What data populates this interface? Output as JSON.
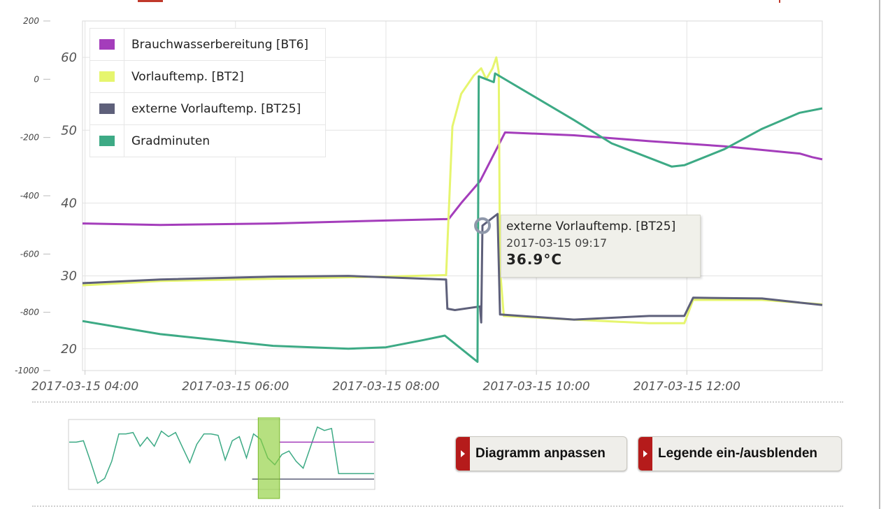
{
  "chart_data": {
    "type": "line",
    "x_range": [
      "2017-03-15 03:58",
      "2017-03-15 13:48"
    ],
    "x_ticks": [
      "2017-03-15 04:00",
      "2017-03-15 06:00",
      "2017-03-15 08:00",
      "2017-03-15 10:00",
      "2017-03-15 12:00"
    ],
    "x_tick_labels": [
      "2017-03-15 04:00",
      "2017-03-15 06:00",
      "2017-03-15 08:00",
      "2017-03-15 10:00",
      "2017-03-15 12:00"
    ],
    "y_left": {
      "ylim": [
        -1000,
        200
      ],
      "ticks": [
        200,
        0,
        -200,
        -400,
        -600,
        -800,
        -1000
      ],
      "tick_labels": [
        "200",
        "0",
        "-200",
        "-400",
        "-600",
        "-800",
        "-1000"
      ]
    },
    "y_right": {
      "ylim": [
        17,
        65
      ],
      "ticks": [
        60,
        50,
        40,
        30,
        20
      ],
      "tick_labels": [
        "60",
        "50",
        "40",
        "30",
        "20"
      ]
    },
    "grid": true,
    "legend_position": "top-left",
    "series": [
      {
        "name": "Brauchwasserbereitung [BT6]",
        "color": "#a43dbb",
        "axis": "right",
        "points": [
          [
            "2017-03-15 03:58",
            37.2
          ],
          [
            "2017-03-15 05:00",
            37.0
          ],
          [
            "2017-03-15 06:30",
            37.2
          ],
          [
            "2017-03-15 08:00",
            37.6
          ],
          [
            "2017-03-15 08:50",
            37.8
          ],
          [
            "2017-03-15 09:00",
            40.0
          ],
          [
            "2017-03-15 09:15",
            43.0
          ],
          [
            "2017-03-15 09:35",
            49.7
          ],
          [
            "2017-03-15 10:30",
            49.3
          ],
          [
            "2017-03-15 11:30",
            48.5
          ],
          [
            "2017-03-15 12:30",
            47.8
          ],
          [
            "2017-03-15 13:30",
            46.8
          ],
          [
            "2017-03-15 13:40",
            46.3
          ],
          [
            "2017-03-15 13:48",
            46.0
          ]
        ]
      },
      {
        "name": "Vorlauftemp. [BT2]",
        "color": "#e6f56e",
        "axis": "right",
        "points": [
          [
            "2017-03-15 03:58",
            28.7
          ],
          [
            "2017-03-15 05:00",
            29.3
          ],
          [
            "2017-03-15 06:30",
            29.6
          ],
          [
            "2017-03-15 08:00",
            29.9
          ],
          [
            "2017-03-15 08:48",
            30.1
          ],
          [
            "2017-03-15 08:53",
            50.5
          ],
          [
            "2017-03-15 09:00",
            55.0
          ],
          [
            "2017-03-15 09:10",
            57.5
          ],
          [
            "2017-03-15 09:16",
            58.5
          ],
          [
            "2017-03-15 09:20",
            57.0
          ],
          [
            "2017-03-15 09:25",
            58.5
          ],
          [
            "2017-03-15 09:28",
            60.0
          ],
          [
            "2017-03-15 09:30",
            58.0
          ],
          [
            "2017-03-15 09:31",
            31.0
          ],
          [
            "2017-03-15 09:34",
            24.5
          ],
          [
            "2017-03-15 10:30",
            24.0
          ],
          [
            "2017-03-15 11:30",
            23.5
          ],
          [
            "2017-03-15 11:58",
            23.5
          ],
          [
            "2017-03-15 12:05",
            26.7
          ],
          [
            "2017-03-15 13:00",
            26.7
          ],
          [
            "2017-03-15 13:48",
            26.1
          ]
        ]
      },
      {
        "name": "externe Vorlauftemp. [BT25]",
        "color": "#5e607a",
        "axis": "right",
        "points": [
          [
            "2017-03-15 03:58",
            29.0
          ],
          [
            "2017-03-15 05:00",
            29.5
          ],
          [
            "2017-03-15 06:30",
            29.9
          ],
          [
            "2017-03-15 07:30",
            30.0
          ],
          [
            "2017-03-15 08:48",
            29.5
          ],
          [
            "2017-03-15 08:49",
            25.5
          ],
          [
            "2017-03-15 08:55",
            25.3
          ],
          [
            "2017-03-15 09:15",
            25.8
          ],
          [
            "2017-03-15 09:16",
            23.6
          ],
          [
            "2017-03-15 09:17",
            36.9
          ],
          [
            "2017-03-15 09:29",
            38.5
          ],
          [
            "2017-03-15 09:31",
            24.7
          ],
          [
            "2017-03-15 10:30",
            24.0
          ],
          [
            "2017-03-15 11:30",
            24.5
          ],
          [
            "2017-03-15 11:58",
            24.5
          ],
          [
            "2017-03-15 12:05",
            27.0
          ],
          [
            "2017-03-15 13:00",
            26.9
          ],
          [
            "2017-03-15 13:48",
            26.0
          ]
        ]
      },
      {
        "name": "Gradminuten",
        "color": "#3daa85",
        "axis": "left",
        "points": [
          [
            "2017-03-15 03:58",
            -830
          ],
          [
            "2017-03-15 05:00",
            -875
          ],
          [
            "2017-03-15 06:30",
            -915
          ],
          [
            "2017-03-15 07:30",
            -925
          ],
          [
            "2017-03-15 08:00",
            -920
          ],
          [
            "2017-03-15 08:30",
            -895
          ],
          [
            "2017-03-15 08:47",
            -880
          ],
          [
            "2017-03-15 09:13",
            -970
          ],
          [
            "2017-03-15 09:14",
            10
          ],
          [
            "2017-03-15 09:26",
            -10
          ],
          [
            "2017-03-15 09:27",
            20
          ],
          [
            "2017-03-15 10:30",
            -140
          ],
          [
            "2017-03-15 11:00",
            -220
          ],
          [
            "2017-03-15 11:48",
            -300
          ],
          [
            "2017-03-15 11:58",
            -295
          ],
          [
            "2017-03-15 12:30",
            -240
          ],
          [
            "2017-03-15 13:00",
            -170
          ],
          [
            "2017-03-15 13:30",
            -115
          ],
          [
            "2017-03-15 13:48",
            -100
          ]
        ]
      }
    ],
    "tooltip": {
      "series": "externe Vorlauftemp. [BT25]",
      "time": "2017-03-15 09:17",
      "value": "36.9°C"
    }
  },
  "navigator": {
    "colors": {
      "series1": "#3daa85",
      "series2": "#a43dbb",
      "series3": "#5e607a",
      "selection": "#8fcf3c"
    },
    "series1_values": [
      32,
      32,
      30,
      60,
      92,
      85,
      60,
      20,
      20,
      18,
      38,
      25,
      38,
      16,
      24,
      18,
      40,
      62,
      35,
      20,
      20,
      22,
      58,
      30,
      24,
      55,
      20,
      28,
      55,
      65,
      50,
      45,
      60,
      70,
      40,
      10,
      15,
      12,
      78,
      78,
      78,
      78,
      78,
      78
    ],
    "series2_values": [
      32,
      32,
      32,
      32,
      32
    ],
    "series3_values": [
      86,
      86,
      86,
      86,
      86
    ],
    "selection_fraction": [
      0.62,
      0.69
    ]
  },
  "buttons": {
    "adjust": "Diagramm anpassen",
    "legend": "Legende ein-/ausblenden"
  }
}
